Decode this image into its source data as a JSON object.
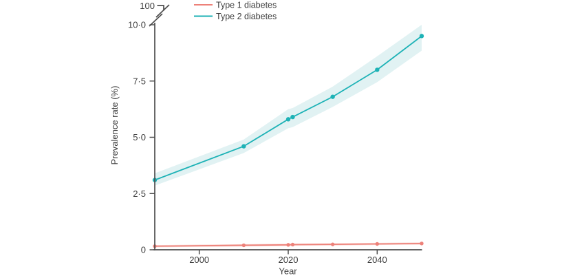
{
  "chart_data": {
    "type": "line",
    "title": "",
    "xlabel": "Year",
    "ylabel": "Prevalence rate (%)",
    "grid": false,
    "legend_position": "top-inside-left",
    "x_axis": {
      "min": 1990,
      "max": 2050,
      "ticks": [
        {
          "value": 2000,
          "label": "2000"
        },
        {
          "value": 2020,
          "label": "2020"
        },
        {
          "value": 2040,
          "label": "2040"
        }
      ]
    },
    "y_axis": {
      "min": 0,
      "max": 10,
      "axis_break": true,
      "break_label": "100",
      "ticks": [
        {
          "value": 0,
          "label": "0"
        },
        {
          "value": 2.5,
          "label": "2·5"
        },
        {
          "value": 5,
          "label": "5·0"
        },
        {
          "value": 7.5,
          "label": "7·5"
        },
        {
          "value": 10,
          "label": "10·0"
        }
      ]
    },
    "x": [
      1990,
      2010,
      2020,
      2021,
      2030,
      2040,
      2050
    ],
    "series": [
      {
        "name": "Type 1 diabetes",
        "color": "#ed8179",
        "band_color": "#fadad6",
        "marker_radius": 2.7,
        "values": [
          0.16,
          0.2,
          0.22,
          0.23,
          0.24,
          0.26,
          0.28
        ],
        "lower": [
          0.11,
          0.15,
          0.17,
          0.18,
          0.19,
          0.21,
          0.23
        ],
        "upper": [
          0.21,
          0.25,
          0.27,
          0.28,
          0.29,
          0.31,
          0.33
        ]
      },
      {
        "name": "Type 2 diabetes",
        "color": "#1db2b6",
        "band_color": "#e1f2f3",
        "marker_radius": 3.2,
        "values": [
          3.1,
          4.6,
          5.8,
          5.9,
          6.8,
          8.0,
          9.5
        ],
        "lower": [
          2.85,
          4.3,
          5.4,
          5.45,
          6.35,
          7.45,
          8.85
        ],
        "upper": [
          3.4,
          4.9,
          6.25,
          6.3,
          7.25,
          8.6,
          10.0
        ]
      }
    ]
  }
}
